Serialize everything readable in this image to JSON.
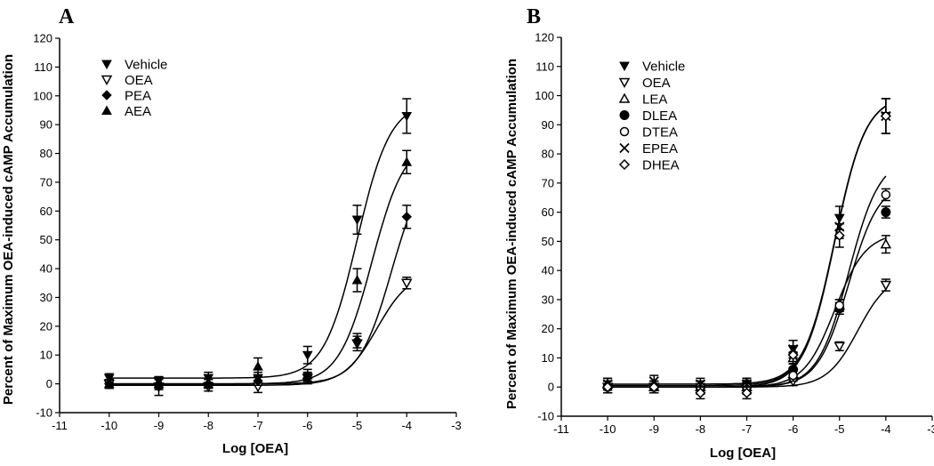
{
  "chart_data": [
    {
      "type": "line",
      "panel": "A",
      "xlabel": "Log [OEA]",
      "ylabel": "Percent of Maximum OEA-induced cAMP Accumulation",
      "xlim": [
        -11,
        -3
      ],
      "ylim": [
        -10,
        120
      ],
      "xticks": [
        -11,
        -10,
        -9,
        -8,
        -7,
        -6,
        -5,
        -4,
        -3
      ],
      "yticks": [
        -10,
        0,
        10,
        20,
        30,
        40,
        50,
        60,
        70,
        80,
        90,
        100,
        110,
        120
      ],
      "legend_position": "top-left",
      "series": [
        {
          "name": "Vehicle",
          "marker": "tri-down-filled",
          "x": [
            -10,
            -9,
            -8,
            -7,
            -6,
            -5,
            -4
          ],
          "y": [
            2,
            1,
            2,
            2,
            10,
            57,
            93
          ],
          "err": [
            1.5,
            1.5,
            2,
            2,
            3,
            5,
            6
          ],
          "fit": {
            "bottom": 2,
            "top": 98,
            "logec50": -5.0,
            "hill": 1.3
          }
        },
        {
          "name": "OEA",
          "marker": "tri-down-open",
          "x": [
            -10,
            -9,
            -8,
            -7,
            -6,
            -5,
            -4
          ],
          "y": [
            0,
            -1,
            -1,
            -1,
            2,
            14,
            35
          ],
          "err": [
            1.5,
            3,
            1.5,
            2,
            2,
            2.5,
            2
          ],
          "fit": {
            "bottom": -0.5,
            "top": 39,
            "logec50": -4.6,
            "hill": 1.3
          }
        },
        {
          "name": "PEA",
          "marker": "diamond-filled",
          "x": [
            -10,
            -9,
            -8,
            -7,
            -6,
            -5,
            -4
          ],
          "y": [
            0,
            0,
            0,
            1,
            2,
            15,
            58
          ],
          "err": [
            1.5,
            2,
            1.5,
            1.5,
            1.5,
            2.5,
            4
          ],
          "fit": {
            "bottom": 0,
            "top": 79,
            "logec50": -4.3,
            "hill": 1.3
          }
        },
        {
          "name": "AEA",
          "marker": "tri-up-filled",
          "x": [
            -10,
            -9,
            -8,
            -7,
            -6,
            -5,
            -4
          ],
          "y": [
            0,
            0,
            0,
            6,
            3,
            36,
            77
          ],
          "err": [
            1.5,
            1.5,
            1.5,
            3,
            2,
            4,
            4
          ],
          "fit": {
            "bottom": 0,
            "top": 85,
            "logec50": -4.7,
            "hill": 1.3
          }
        }
      ]
    },
    {
      "type": "line",
      "panel": "B",
      "xlabel": "Log [OEA]",
      "ylabel": "Percent of Maximum OEA-induced cAMP Accumulation",
      "xlim": [
        -11,
        -3
      ],
      "ylim": [
        -10,
        120
      ],
      "xticks": [
        -11,
        -10,
        -9,
        -8,
        -7,
        -6,
        -5,
        -4,
        -3
      ],
      "yticks": [
        -10,
        0,
        10,
        20,
        30,
        40,
        50,
        60,
        70,
        80,
        90,
        100,
        110,
        120
      ],
      "legend_position": "top-left",
      "series": [
        {
          "name": "Vehicle",
          "marker": "tri-down-filled",
          "x": [
            -10,
            -9,
            -8,
            -7,
            -6,
            -5,
            -4
          ],
          "y": [
            0,
            0,
            0,
            1,
            13,
            58,
            93
          ],
          "err": [
            2,
            2,
            2,
            2,
            3,
            4,
            6
          ],
          "fit": {
            "bottom": 0.5,
            "top": 100,
            "logec50": -5.1,
            "hill": 1.3
          }
        },
        {
          "name": "OEA",
          "marker": "tri-down-open",
          "x": [
            -10,
            -9,
            -8,
            -7,
            -6,
            -5,
            -4
          ],
          "y": [
            0,
            0,
            -1,
            -1,
            2,
            14,
            35
          ],
          "err": [
            2,
            2,
            1.5,
            1.5,
            1.5,
            1.5,
            2
          ],
          "fit": {
            "bottom": 0,
            "top": 39,
            "logec50": -4.6,
            "hill": 1.3
          }
        },
        {
          "name": "LEA",
          "marker": "tri-up-open",
          "x": [
            -10,
            -9,
            -8,
            -7,
            -6,
            -5,
            -4
          ],
          "y": [
            1,
            0,
            0,
            0,
            10,
            28,
            49
          ],
          "err": [
            2,
            2,
            2,
            2,
            2,
            2,
            3
          ],
          "fit": {
            "bottom": 0,
            "top": 53,
            "logec50": -5.1,
            "hill": 1.3
          }
        },
        {
          "name": "DLEA",
          "marker": "circle-filled",
          "x": [
            -10,
            -9,
            -8,
            -7,
            -6,
            -5,
            -4
          ],
          "y": [
            0,
            0,
            0,
            1,
            6,
            27,
            60
          ],
          "err": [
            2,
            2,
            2,
            2,
            2,
            2,
            2
          ],
          "fit": {
            "bottom": 0,
            "top": 71,
            "logec50": -4.8,
            "hill": 1.3
          }
        },
        {
          "name": "DTEA",
          "marker": "circle-open",
          "x": [
            -10,
            -9,
            -8,
            -7,
            -6,
            -5,
            -4
          ],
          "y": [
            0,
            0,
            0,
            0,
            4,
            28,
            66
          ],
          "err": [
            2,
            2,
            2,
            2,
            2,
            2,
            2
          ],
          "fit": {
            "bottom": 0,
            "top": 79,
            "logec50": -4.8,
            "hill": 1.3
          }
        },
        {
          "name": "EPEA",
          "marker": "cross",
          "x": [
            -10,
            -9,
            -8,
            -7,
            -6,
            -5,
            -4
          ],
          "y": [
            1,
            2,
            1,
            1,
            13,
            55,
            93
          ],
          "err": [
            2,
            2,
            2,
            2,
            3,
            4,
            6
          ],
          "fit": {
            "bottom": 1,
            "top": 100,
            "logec50": -5.1,
            "hill": 1.3
          }
        },
        {
          "name": "DHEA",
          "marker": "diamond-open",
          "x": [
            -10,
            -9,
            -8,
            -7,
            -6,
            -5,
            -4
          ],
          "y": [
            0,
            0,
            -2,
            -2,
            11,
            52,
            93
          ],
          "err": [
            2,
            2,
            2,
            2,
            3,
            4,
            6
          ],
          "fit": {
            "bottom": 0,
            "top": 100,
            "logec50": -5.1,
            "hill": 1.3
          }
        }
      ]
    }
  ]
}
